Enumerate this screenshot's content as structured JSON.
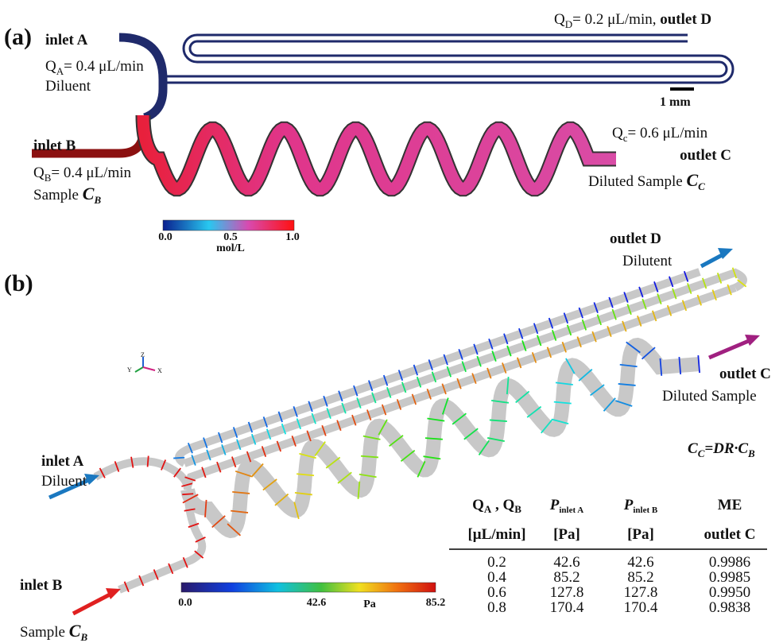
{
  "panel_a": {
    "label": "(a)",
    "inlet_a": {
      "name": "inlet A",
      "flow": {
        "q": "Q",
        "sub": "A",
        "text": "= 0.4 μL/min"
      },
      "fluid": "Diluent"
    },
    "inlet_b": {
      "name": "inlet B",
      "flow": {
        "q": "Q",
        "sub": "B",
        "text": "= 0.4 μL/min"
      },
      "fluid": {
        "text": "Sample ",
        "symbol": "C",
        "sub": "B"
      }
    },
    "outlet_d": {
      "flow": {
        "q": "Q",
        "sub": "D",
        "text": "= 0.2 μL/min, "
      },
      "name": "outlet D"
    },
    "outlet_c": {
      "flow": {
        "q": "Q",
        "sub": "c",
        "text": "= 0.6 μL/min"
      },
      "name": "outlet C",
      "fluid": {
        "text": "Diluted Sample ",
        "symbol": "C",
        "sub": "C"
      }
    },
    "scale_bar": "1 mm",
    "colorbar": {
      "ticks": [
        "0.0",
        "0.5",
        "1.0"
      ],
      "unit": "mol/L"
    }
  },
  "panel_b": {
    "label": "(b)",
    "outlet_d": {
      "name": "outlet D",
      "fluid": "Dilutent"
    },
    "outlet_c": {
      "name": "outlet C",
      "fluid": "Diluted Sample"
    },
    "axes": {
      "z": "Z",
      "y": "Y",
      "x": "X"
    },
    "equation": {
      "lhs": "C",
      "lhs_sub": "C",
      "mid": "=DR·",
      "rhs": "C",
      "rhs_sub": "B"
    },
    "inlet_a": {
      "name": "inlet A",
      "fluid": "Diluent"
    },
    "inlet_b": {
      "name": "inlet B",
      "fluid": {
        "text": "Sample ",
        "symbol": "C",
        "sub": "B"
      }
    },
    "colorbar": {
      "ticks": [
        "0.0",
        "42.6",
        "85.2"
      ],
      "unit": "Pa"
    },
    "table": {
      "header": [
        {
          "q": "Q",
          "sub": "A",
          "sep": " , ",
          "q2": "Q",
          "sub2": "B"
        },
        {
          "p": "P",
          "sub": "inlet A"
        },
        {
          "p": "P",
          "sub": "inlet B"
        },
        "ME"
      ],
      "units": [
        "[μL/min]",
        "[Pa]",
        "[Pa]",
        "outlet C"
      ],
      "rows": [
        [
          "0.2",
          "42.6",
          "42.6",
          "0.9986"
        ],
        [
          "0.4",
          "85.2",
          "85.2",
          "0.9985"
        ],
        [
          "0.6",
          "127.8",
          "127.8",
          "0.9950"
        ],
        [
          "0.8",
          "170.4",
          "170.4",
          "0.9838"
        ]
      ]
    }
  }
}
